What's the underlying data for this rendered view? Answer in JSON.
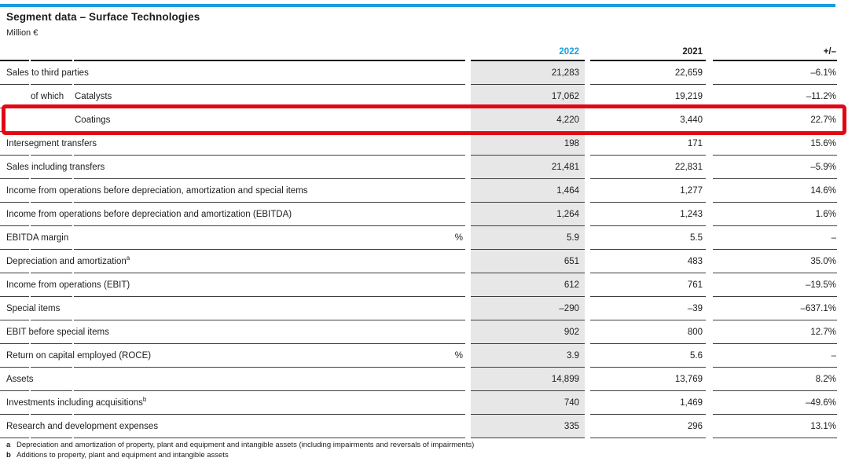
{
  "colors": {
    "accent_blue": "#1a9ddb",
    "highlight_red": "#e30613",
    "column_bg": "#e7e7e7"
  },
  "header": {
    "title": "Segment data – Surface Technologies",
    "unit_note": "Million €"
  },
  "table": {
    "columns": {
      "y2022": "2022",
      "y2021": "2021",
      "delta": "+/–"
    },
    "rows": [
      {
        "label": "Sales to third parties",
        "indent": 0,
        "prefix": "",
        "sup": "",
        "unit": "",
        "v2022": "21,283",
        "v2021": "22,659",
        "delta": "–6.1%",
        "highlight": false
      },
      {
        "label": "Catalysts",
        "indent": 1,
        "prefix": "of which",
        "sup": "",
        "unit": "",
        "v2022": "17,062",
        "v2021": "19,219",
        "delta": "–11.2%",
        "highlight": false
      },
      {
        "label": "Coatings",
        "indent": 2,
        "prefix": "",
        "sup": "",
        "unit": "",
        "v2022": "4,220",
        "v2021": "3,440",
        "delta": "22.7%",
        "highlight": true
      },
      {
        "label": "Intersegment transfers",
        "indent": 0,
        "prefix": "",
        "sup": "",
        "unit": "",
        "v2022": "198",
        "v2021": "171",
        "delta": "15.6%",
        "highlight": false
      },
      {
        "label": "Sales including transfers",
        "indent": 0,
        "prefix": "",
        "sup": "",
        "unit": "",
        "v2022": "21,481",
        "v2021": "22,831",
        "delta": "–5.9%",
        "highlight": false
      },
      {
        "label": "Income from operations before depreciation, amortization and special items",
        "indent": 0,
        "prefix": "",
        "sup": "",
        "unit": "",
        "v2022": "1,464",
        "v2021": "1,277",
        "delta": "14.6%",
        "highlight": false
      },
      {
        "label": "Income from operations before depreciation and amortization (EBITDA)",
        "indent": 0,
        "prefix": "",
        "sup": "",
        "unit": "",
        "v2022": "1,264",
        "v2021": "1,243",
        "delta": "1.6%",
        "highlight": false
      },
      {
        "label": "EBITDA margin",
        "indent": 0,
        "prefix": "",
        "sup": "",
        "unit": "%",
        "v2022": "5.9",
        "v2021": "5.5",
        "delta": "–",
        "highlight": false
      },
      {
        "label": "Depreciation and amortization",
        "indent": 0,
        "prefix": "",
        "sup": "a",
        "unit": "",
        "v2022": "651",
        "v2021": "483",
        "delta": "35.0%",
        "highlight": false
      },
      {
        "label": "Income from operations (EBIT)",
        "indent": 0,
        "prefix": "",
        "sup": "",
        "unit": "",
        "v2022": "612",
        "v2021": "761",
        "delta": "–19.5%",
        "highlight": false
      },
      {
        "label": "Special items",
        "indent": 0,
        "prefix": "",
        "sup": "",
        "unit": "",
        "v2022": "–290",
        "v2021": "–39",
        "delta": "–637.1%",
        "highlight": false
      },
      {
        "label": "EBIT before special items",
        "indent": 0,
        "prefix": "",
        "sup": "",
        "unit": "",
        "v2022": "902",
        "v2021": "800",
        "delta": "12.7%",
        "highlight": false
      },
      {
        "label": "Return on capital employed (ROCE)",
        "indent": 0,
        "prefix": "",
        "sup": "",
        "unit": "%",
        "v2022": "3.9",
        "v2021": "5.6",
        "delta": "–",
        "highlight": false
      },
      {
        "label": "Assets",
        "indent": 0,
        "prefix": "",
        "sup": "",
        "unit": "",
        "v2022": "14,899",
        "v2021": "13,769",
        "delta": "8.2%",
        "highlight": false
      },
      {
        "label": "Investments including acquisitions",
        "indent": 0,
        "prefix": "",
        "sup": "b",
        "unit": "",
        "v2022": "740",
        "v2021": "1,469",
        "delta": "–49.6%",
        "highlight": false
      },
      {
        "label": "Research and development expenses",
        "indent": 0,
        "prefix": "",
        "sup": "",
        "unit": "",
        "v2022": "335",
        "v2021": "296",
        "delta": "13.1%",
        "highlight": false
      }
    ]
  },
  "footnotes": [
    {
      "marker": "a",
      "text": "Depreciation and amortization of property, plant and equipment and intangible assets (including impairments and reversals of impairments)"
    },
    {
      "marker": "b",
      "text": "Additions to property, plant and equipment and intangible assets"
    }
  ]
}
